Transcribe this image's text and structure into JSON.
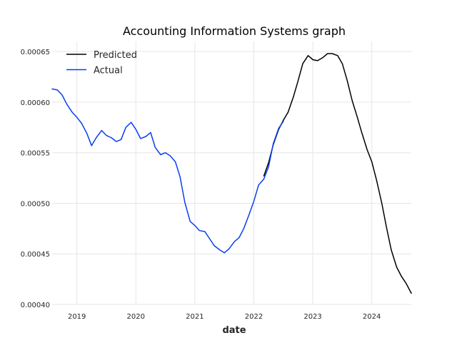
{
  "chart_data": {
    "type": "line",
    "title": "Accounting Information Systems graph",
    "xlabel": "date",
    "ylabel": "",
    "xlim": [
      2018.58,
      2024.67
    ],
    "ylim": [
      0.0004,
      0.00066
    ],
    "xticks": [
      {
        "value": 2019,
        "label": "2019"
      },
      {
        "value": 2020,
        "label": "2020"
      },
      {
        "value": 2021,
        "label": "2021"
      },
      {
        "value": 2022,
        "label": "2022"
      },
      {
        "value": 2023,
        "label": "2023"
      },
      {
        "value": 2024,
        "label": "2024"
      }
    ],
    "yticks": [
      {
        "value": 0.0004,
        "label": "0.00040"
      },
      {
        "value": 0.00045,
        "label": "0.00045"
      },
      {
        "value": 0.0005,
        "label": "0.00050"
      },
      {
        "value": 0.00055,
        "label": "0.00055"
      },
      {
        "value": 0.0006,
        "label": "0.00060"
      },
      {
        "value": 0.00065,
        "label": "0.00065"
      }
    ],
    "grid": true,
    "legend": "top-left",
    "series": [
      {
        "name": "Predicted",
        "color": "#000000",
        "points": [
          [
            2022.17,
            0.000527
          ],
          [
            2022.25,
            0.00054
          ],
          [
            2022.33,
            0.000558
          ],
          [
            2022.42,
            0.000573
          ],
          [
            2022.5,
            0.000582
          ],
          [
            2022.58,
            0.00059
          ],
          [
            2022.67,
            0.000605
          ],
          [
            2022.75,
            0.000621
          ],
          [
            2022.83,
            0.000638
          ],
          [
            2022.92,
            0.000646
          ],
          [
            2023.0,
            0.000642
          ],
          [
            2023.08,
            0.000641
          ],
          [
            2023.17,
            0.000644
          ],
          [
            2023.25,
            0.000648
          ],
          [
            2023.33,
            0.000648
          ],
          [
            2023.42,
            0.000646
          ],
          [
            2023.5,
            0.000638
          ],
          [
            2023.58,
            0.000622
          ],
          [
            2023.67,
            0.000601
          ],
          [
            2023.75,
            0.000586
          ],
          [
            2023.83,
            0.00057
          ],
          [
            2023.92,
            0.000553
          ],
          [
            2024.0,
            0.000541
          ],
          [
            2024.08,
            0.000523
          ],
          [
            2024.17,
            0.0005
          ],
          [
            2024.25,
            0.000476
          ],
          [
            2024.33,
            0.000454
          ],
          [
            2024.42,
            0.000437
          ],
          [
            2024.5,
            0.000428
          ],
          [
            2024.58,
            0.000421
          ],
          [
            2024.67,
            0.000411
          ]
        ]
      },
      {
        "name": "Actual",
        "color": "#0a3ff0",
        "points": [
          [
            2018.58,
            0.000613
          ],
          [
            2018.67,
            0.000612
          ],
          [
            2018.75,
            0.000607
          ],
          [
            2018.83,
            0.000598
          ],
          [
            2018.92,
            0.00059
          ],
          [
            2019.0,
            0.000585
          ],
          [
            2019.08,
            0.000579
          ],
          [
            2019.17,
            0.000569
          ],
          [
            2019.25,
            0.000557
          ],
          [
            2019.33,
            0.000565
          ],
          [
            2019.42,
            0.000572
          ],
          [
            2019.5,
            0.000567
          ],
          [
            2019.58,
            0.000565
          ],
          [
            2019.67,
            0.000561
          ],
          [
            2019.75,
            0.000563
          ],
          [
            2019.83,
            0.000575
          ],
          [
            2019.92,
            0.00058
          ],
          [
            2020.0,
            0.000573
          ],
          [
            2020.08,
            0.000564
          ],
          [
            2020.17,
            0.000566
          ],
          [
            2020.25,
            0.00057
          ],
          [
            2020.33,
            0.000555
          ],
          [
            2020.42,
            0.000548
          ],
          [
            2020.5,
            0.00055
          ],
          [
            2020.58,
            0.000547
          ],
          [
            2020.67,
            0.000541
          ],
          [
            2020.75,
            0.000526
          ],
          [
            2020.83,
            0.000501
          ],
          [
            2020.92,
            0.000482
          ],
          [
            2021.0,
            0.000478
          ],
          [
            2021.08,
            0.000473
          ],
          [
            2021.17,
            0.000472
          ],
          [
            2021.25,
            0.000465
          ],
          [
            2021.33,
            0.000458
          ],
          [
            2021.42,
            0.000454
          ],
          [
            2021.5,
            0.000451
          ],
          [
            2021.58,
            0.000455
          ],
          [
            2021.67,
            0.000462
          ],
          [
            2021.75,
            0.000466
          ],
          [
            2021.83,
            0.000475
          ],
          [
            2021.92,
            0.000489
          ],
          [
            2022.0,
            0.000502
          ],
          [
            2022.08,
            0.000518
          ],
          [
            2022.17,
            0.000524
          ],
          [
            2022.25,
            0.000536
          ],
          [
            2022.33,
            0.000559
          ],
          [
            2022.42,
            0.000574
          ],
          [
            2022.5,
            0.000581
          ]
        ]
      }
    ]
  }
}
